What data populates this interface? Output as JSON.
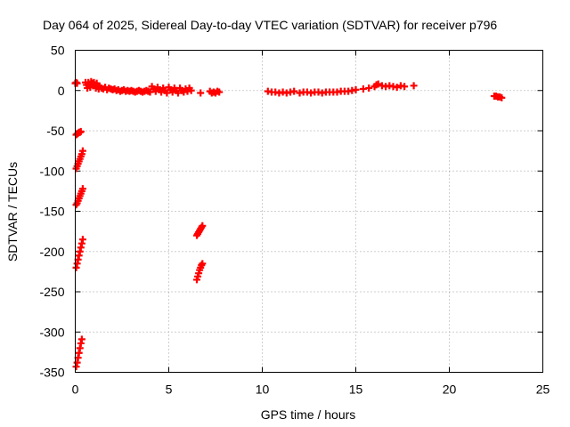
{
  "chart_data": {
    "type": "scatter",
    "title": "Day 064 of 2025, Sidereal Day-to-day VTEC variation (SDTVAR) for receiver p796",
    "xlabel": "GPS time / hours",
    "ylabel": "SDTVAR / TECUs",
    "xlim": [
      0,
      25
    ],
    "ylim": [
      -350,
      50
    ],
    "xticks": [
      0,
      5,
      10,
      15,
      20,
      25
    ],
    "yticks": [
      50,
      0,
      -50,
      -100,
      -150,
      -200,
      -250,
      -300,
      -350
    ],
    "grid": true,
    "marker": "plus",
    "color": "#ff0000",
    "series": [
      {
        "name": "near-zero band",
        "points": [
          [
            0.0,
            9
          ],
          [
            0.05,
            10
          ],
          [
            0.1,
            9
          ],
          [
            0.55,
            10
          ],
          [
            0.6,
            7
          ],
          [
            0.65,
            3
          ],
          [
            0.7,
            10
          ],
          [
            0.75,
            8
          ],
          [
            0.8,
            4
          ],
          [
            0.85,
            11
          ],
          [
            0.9,
            9
          ],
          [
            0.95,
            6
          ],
          [
            1.0,
            10
          ],
          [
            1.05,
            7
          ],
          [
            1.1,
            3
          ],
          [
            1.15,
            9
          ],
          [
            1.2,
            6
          ],
          [
            1.25,
            2
          ],
          [
            1.3,
            5
          ],
          [
            1.4,
            3
          ],
          [
            1.5,
            2
          ],
          [
            1.6,
            4
          ],
          [
            1.7,
            1
          ],
          [
            1.8,
            3
          ],
          [
            1.9,
            2
          ],
          [
            2.0,
            1
          ],
          [
            2.1,
            2
          ],
          [
            2.2,
            0
          ],
          [
            2.3,
            1
          ],
          [
            2.4,
            -1
          ],
          [
            2.5,
            0
          ],
          [
            2.6,
            1
          ],
          [
            2.7,
            -1
          ],
          [
            2.8,
            0
          ],
          [
            2.9,
            -1
          ],
          [
            3.0,
            0
          ],
          [
            3.1,
            -1
          ],
          [
            3.2,
            -2
          ],
          [
            3.3,
            -1
          ],
          [
            3.4,
            0
          ],
          [
            3.5,
            -1
          ],
          [
            3.6,
            -2
          ],
          [
            3.7,
            -1
          ],
          [
            3.8,
            0
          ],
          [
            3.9,
            -1
          ],
          [
            4.0,
            -2
          ],
          [
            4.1,
            5
          ],
          [
            4.2,
            2
          ],
          [
            4.3,
            -1
          ],
          [
            4.4,
            4
          ],
          [
            4.5,
            1
          ],
          [
            4.6,
            -2
          ],
          [
            4.7,
            3
          ],
          [
            4.8,
            0
          ],
          [
            4.9,
            -3
          ],
          [
            5.0,
            4
          ],
          [
            5.1,
            1
          ],
          [
            5.2,
            -2
          ],
          [
            5.3,
            3
          ],
          [
            5.4,
            0
          ],
          [
            5.5,
            -3
          ],
          [
            5.6,
            3
          ],
          [
            5.7,
            0
          ],
          [
            5.8,
            -2
          ],
          [
            5.9,
            2
          ],
          [
            6.0,
            -1
          ],
          [
            6.1,
            3
          ],
          [
            6.2,
            0
          ],
          [
            6.7,
            -3
          ],
          [
            7.2,
            -1
          ],
          [
            7.3,
            -3
          ],
          [
            7.4,
            -2
          ],
          [
            7.5,
            -3
          ],
          [
            7.6,
            -1
          ],
          [
            7.7,
            -2
          ],
          [
            10.3,
            -1
          ],
          [
            10.5,
            -2
          ],
          [
            10.7,
            -2
          ],
          [
            10.9,
            -3
          ],
          [
            11.1,
            -2
          ],
          [
            11.3,
            -3
          ],
          [
            11.5,
            -2
          ],
          [
            11.7,
            -1
          ],
          [
            12.0,
            -3
          ],
          [
            12.2,
            -2
          ],
          [
            12.4,
            -2
          ],
          [
            12.6,
            -3
          ],
          [
            12.8,
            -2
          ],
          [
            13.0,
            -2
          ],
          [
            13.2,
            -3
          ],
          [
            13.4,
            -2
          ],
          [
            13.6,
            -2
          ],
          [
            13.8,
            -2
          ],
          [
            14.0,
            -2
          ],
          [
            14.2,
            -1
          ],
          [
            14.4,
            -1
          ],
          [
            14.6,
            -1
          ],
          [
            14.8,
            0
          ],
          [
            15.0,
            1
          ],
          [
            15.4,
            2
          ],
          [
            15.7,
            3
          ],
          [
            16.0,
            5
          ],
          [
            16.1,
            7
          ],
          [
            16.2,
            8
          ],
          [
            16.4,
            6
          ],
          [
            16.6,
            5
          ],
          [
            16.8,
            6
          ],
          [
            17.0,
            5
          ],
          [
            17.2,
            4
          ],
          [
            17.4,
            6
          ],
          [
            17.6,
            5
          ],
          [
            18.1,
            6
          ],
          [
            22.4,
            -7
          ],
          [
            22.5,
            -7
          ],
          [
            22.6,
            -8
          ],
          [
            22.7,
            -8
          ],
          [
            22.8,
            -9
          ]
        ]
      },
      {
        "name": "descending arcs",
        "points": [
          [
            0.05,
            -55
          ],
          [
            0.1,
            -54
          ],
          [
            0.15,
            -53
          ],
          [
            0.2,
            -52
          ],
          [
            0.25,
            -52
          ],
          [
            0.3,
            -51
          ],
          [
            0.05,
            -97
          ],
          [
            0.1,
            -94
          ],
          [
            0.15,
            -91
          ],
          [
            0.2,
            -88
          ],
          [
            0.25,
            -85
          ],
          [
            0.3,
            -82
          ],
          [
            0.35,
            -79
          ],
          [
            0.4,
            -75
          ],
          [
            0.05,
            -142
          ],
          [
            0.1,
            -140
          ],
          [
            0.15,
            -137
          ],
          [
            0.2,
            -134
          ],
          [
            0.25,
            -131
          ],
          [
            0.3,
            -128
          ],
          [
            0.35,
            -125
          ],
          [
            0.4,
            -122
          ],
          [
            0.05,
            -220
          ],
          [
            0.1,
            -215
          ],
          [
            0.15,
            -210
          ],
          [
            0.2,
            -205
          ],
          [
            0.25,
            -200
          ],
          [
            0.3,
            -195
          ],
          [
            0.35,
            -190
          ],
          [
            0.4,
            -185
          ],
          [
            0.05,
            -343
          ],
          [
            0.1,
            -338
          ],
          [
            0.15,
            -332
          ],
          [
            0.2,
            -326
          ],
          [
            0.25,
            -320
          ],
          [
            0.3,
            -314
          ],
          [
            0.35,
            -309
          ],
          [
            6.5,
            -180
          ],
          [
            6.55,
            -178
          ],
          [
            6.6,
            -176
          ],
          [
            6.65,
            -174
          ],
          [
            6.7,
            -172
          ],
          [
            6.75,
            -170
          ],
          [
            6.8,
            -168
          ],
          [
            6.5,
            -235
          ],
          [
            6.55,
            -231
          ],
          [
            6.6,
            -227
          ],
          [
            6.65,
            -223
          ],
          [
            6.7,
            -220
          ],
          [
            6.75,
            -217
          ],
          [
            6.8,
            -215
          ]
        ]
      }
    ]
  }
}
